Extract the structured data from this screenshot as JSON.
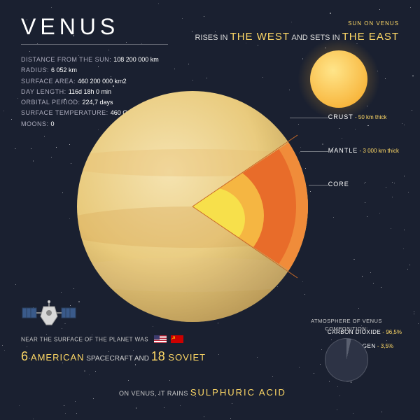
{
  "title": "VENUS",
  "facts": [
    {
      "label": "DISTANCE FROM THE SUN:",
      "value": "108 200 000 km"
    },
    {
      "label": "RADIUS:",
      "value": "6 052 km"
    },
    {
      "label": "SURFACE AREA:",
      "value": "460 200 000  km2"
    },
    {
      "label": "DAY LENGTH:",
      "value": "116d 18h 0 min"
    },
    {
      "label": "ORBITAL PERIOD:",
      "value": "224,7 days"
    },
    {
      "label": "SURFACE TEMPERATURE:",
      "value": "460 C"
    },
    {
      "label": "MOONS:",
      "value": "0"
    }
  ],
  "sun_fact": {
    "pre": "SUN ON VENUS",
    "line1a": "RISES IN ",
    "line1b": "THE WEST",
    "line1c": " AND SETS IN ",
    "line1d": "THE EAST"
  },
  "layers": [
    {
      "name": "CRUST",
      "value": " - 50 km thick"
    },
    {
      "name": "MANTLE",
      "value": " - 3 000 km thick"
    },
    {
      "name": "CORE",
      "value": ""
    }
  ],
  "spacecraft": {
    "pre": "NEAR THE SURFACE OF THE PLANET WAS",
    "n1": "6",
    "w1": " AMERICAN",
    "mid": " SPACECRAFT AND ",
    "n2": "18",
    "w2": " SOVIET"
  },
  "acid": {
    "pre": "ON VENUS, IT RAINS ",
    "accent": "SULPHURIC ACID"
  },
  "atmosphere": {
    "title1": "ATMOSPHERE OF VENUS",
    "title2": "COMPOSITION:",
    "items": [
      {
        "name": "CARBON DIOXIDE",
        "value": " - 96,5%",
        "pct": 96.5
      },
      {
        "name": "NITROGEN",
        "value": " - 3,5%",
        "pct": 3.5
      }
    ],
    "colors": {
      "major": "#2d3345",
      "minor": "#5a6070"
    }
  },
  "colors": {
    "bg": "#1a2030",
    "accent": "#ffd966",
    "crust": "#f08c3a",
    "mantle": "#e86c2a",
    "outer_core": "#f5b642",
    "inner_core": "#f7e04b",
    "planet_light": "#f5e3b0",
    "planet_dark": "#d4a85a"
  }
}
